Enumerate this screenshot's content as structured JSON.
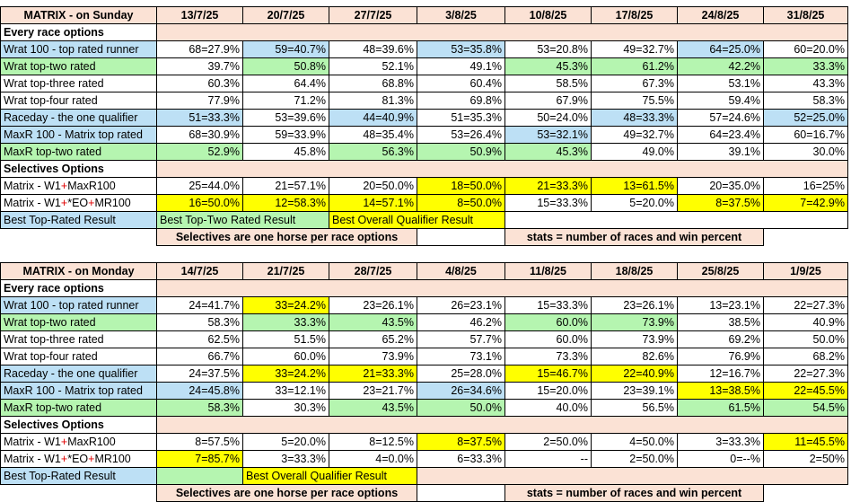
{
  "tables": [
    {
      "title": "MATRIX - on Sunday",
      "dates": [
        "13/7/25",
        "20/7/25",
        "27/7/25",
        "3/8/25",
        "10/8/25",
        "17/8/25",
        "24/8/25",
        "31/8/25"
      ],
      "sections": [
        {
          "heading": "Every race options",
          "rows": [
            {
              "label": "Wrat 100 - top rated runner",
              "lc": "b",
              "values": [
                "68=27.9%",
                "59=40.7%",
                "48=39.6%",
                "53=35.8%",
                "53=20.8%",
                "49=32.7%",
                "64=25.0%",
                "60=20.0%"
              ],
              "colors": [
                "w",
                "b",
                "w",
                "b",
                "w",
                "w",
                "b",
                "w"
              ]
            },
            {
              "label": "Wrat top-two rated",
              "lc": "g",
              "values": [
                "39.7%",
                "50.8%",
                "52.1%",
                "49.1%",
                "45.3%",
                "61.2%",
                "42.2%",
                "33.3%"
              ],
              "colors": [
                "w",
                "g",
                "w",
                "w",
                "g",
                "g",
                "g",
                "g"
              ]
            },
            {
              "label": "Wrat top-three rated",
              "lc": "w",
              "values": [
                "60.3%",
                "64.4%",
                "68.8%",
                "60.4%",
                "58.5%",
                "67.3%",
                "53.1%",
                "43.3%"
              ],
              "colors": [
                "w",
                "w",
                "w",
                "w",
                "w",
                "w",
                "w",
                "w"
              ]
            },
            {
              "label": "Wrat top-four rated",
              "lc": "w",
              "values": [
                "77.9%",
                "71.2%",
                "81.3%",
                "69.8%",
                "67.9%",
                "75.5%",
                "59.4%",
                "58.3%"
              ],
              "colors": [
                "w",
                "w",
                "w",
                "w",
                "w",
                "w",
                "w",
                "w"
              ]
            },
            {
              "label": "Raceday - the one qualifier",
              "lc": "b",
              "values": [
                "51=33.3%",
                "53=39.6%",
                "44=40.9%",
                "51=35.3%",
                "50=24.0%",
                "48=33.3%",
                "57=24.6%",
                "52=25.0%"
              ],
              "colors": [
                "b",
                "w",
                "b",
                "w",
                "w",
                "b",
                "w",
                "b"
              ]
            },
            {
              "label": "MaxR 100 - Matrix top rated",
              "lc": "b",
              "values": [
                "68=30.9%",
                "59=33.9%",
                "48=35.4%",
                "53=26.4%",
                "53=32.1%",
                "49=32.7%",
                "64=23.4%",
                "60=16.7%"
              ],
              "colors": [
                "w",
                "w",
                "w",
                "w",
                "b",
                "w",
                "w",
                "w"
              ]
            },
            {
              "label": "MaxR top-two rated",
              "lc": "g",
              "values": [
                "52.9%",
                "45.8%",
                "56.3%",
                "50.9%",
                "45.3%",
                "49.0%",
                "39.1%",
                "30.0%"
              ],
              "colors": [
                "g",
                "w",
                "g",
                "g",
                "g",
                "w",
                "w",
                "w"
              ]
            }
          ]
        },
        {
          "heading": "Selectives Options",
          "rows": [
            {
              "label": "Matrix - W1+MaxR100",
              "label_parts": [
                "Matrix - W1",
                "+",
                "MaxR100"
              ],
              "lc": "w",
              "values": [
                "25=44.0%",
                "21=57.1%",
                "20=50.0%",
                "18=50.0%",
                "21=33.3%",
                "13=61.5%",
                "20=35.0%",
                "16=25%"
              ],
              "colors": [
                "w",
                "w",
                "w",
                "y",
                "y",
                "y",
                "w",
                "w"
              ]
            },
            {
              "label": "Matrix - W1+*EO+MR100",
              "label_parts": [
                "Matrix - W1",
                "+",
                "*EO",
                "+",
                "MR100"
              ],
              "lc": "w",
              "values": [
                "16=50.0%",
                "12=58.3%",
                "14=57.1%",
                "8=50.0%",
                "15=33.3%",
                "5=20.0%",
                "8=37.5%",
                "7=42.9%"
              ],
              "colors": [
                "y",
                "y",
                "y",
                "y",
                "w",
                "w",
                "y",
                "y"
              ]
            }
          ]
        }
      ],
      "legend_best_top": "Best Top-Rated Result",
      "legend_best_two": "Best Top-Two Rated Result",
      "legend_best_overall": "Best Overall Qualifier Result",
      "note_left": "Selectives are one horse per race options",
      "note_right": "stats = number of races and win percent"
    },
    {
      "title": "MATRIX - on Monday",
      "dates": [
        "14/7/25",
        "21/7/25",
        "28/7/25",
        "4/8/25",
        "11/8/25",
        "18/8/25",
        "25/8/25",
        "1/9/25"
      ],
      "sections": [
        {
          "heading": "Every race options",
          "rows": [
            {
              "label": "Wrat 100 - top rated runner",
              "lc": "b",
              "values": [
                "24=41.7%",
                "33=24.2%",
                "23=26.1%",
                "26=23.1%",
                "15=33.3%",
                "23=26.1%",
                "13=23.1%",
                "22=27.3%"
              ],
              "colors": [
                "w",
                "y",
                "w",
                "w",
                "w",
                "w",
                "w",
                "w"
              ]
            },
            {
              "label": "Wrat top-two rated",
              "lc": "g",
              "values": [
                "58.3%",
                "33.3%",
                "43.5%",
                "46.2%",
                "60.0%",
                "73.9%",
                "38.5%",
                "40.9%"
              ],
              "colors": [
                "w",
                "g",
                "g",
                "w",
                "g",
                "g",
                "w",
                "w"
              ]
            },
            {
              "label": "Wrat top-three rated",
              "lc": "w",
              "values": [
                "62.5%",
                "51.5%",
                "65.2%",
                "57.7%",
                "60.0%",
                "73.9%",
                "69.2%",
                "50.0%"
              ],
              "colors": [
                "w",
                "w",
                "w",
                "w",
                "w",
                "w",
                "w",
                "w"
              ]
            },
            {
              "label": "Wrat top-four rated",
              "lc": "w",
              "values": [
                "66.7%",
                "60.0%",
                "73.9%",
                "73.1%",
                "73.3%",
                "82.6%",
                "76.9%",
                "68.2%"
              ],
              "colors": [
                "w",
                "w",
                "w",
                "w",
                "w",
                "w",
                "w",
                "w"
              ]
            },
            {
              "label": "Raceday - the one qualifier",
              "lc": "b",
              "values": [
                "24=37.5%",
                "33=24.2%",
                "21=33.3%",
                "25=28.0%",
                "15=46.7%",
                "22=40.9%",
                "12=16.7%",
                "22=27.3%"
              ],
              "colors": [
                "w",
                "y",
                "y",
                "w",
                "y",
                "y",
                "w",
                "w"
              ]
            },
            {
              "label": "MaxR 100 - Matrix top rated",
              "lc": "b",
              "values": [
                "24=45.8%",
                "33=12.1%",
                "23=21.7%",
                "26=34.6%",
                "15=20.0%",
                "23=39.1%",
                "13=38.5%",
                "22=45.5%"
              ],
              "colors": [
                "b",
                "w",
                "w",
                "b",
                "w",
                "w",
                "y",
                "y"
              ]
            },
            {
              "label": "MaxR top-two rated",
              "lc": "g",
              "values": [
                "58.3%",
                "30.3%",
                "43.5%",
                "50.0%",
                "40.0%",
                "56.5%",
                "61.5%",
                "54.5%"
              ],
              "colors": [
                "g",
                "w",
                "g",
                "g",
                "w",
                "w",
                "g",
                "g"
              ]
            }
          ]
        },
        {
          "heading": "Selectives Options",
          "rows": [
            {
              "label": "Matrix - W1+MaxR100",
              "label_parts": [
                "Matrix - W1",
                "+",
                "MaxR100"
              ],
              "lc": "w",
              "values": [
                "8=57.5%",
                "5=20.0%",
                "8=12.5%",
                "8=37.5%",
                "2=50.0%",
                "4=50.0%",
                "3=33.3%",
                "11=45.5%"
              ],
              "colors": [
                "w",
                "w",
                "w",
                "y",
                "w",
                "w",
                "w",
                "y"
              ]
            },
            {
              "label": "Matrix - W1+*EO+MR100",
              "label_parts": [
                "Matrix - W1",
                "+",
                "*EO",
                "+",
                "MR100"
              ],
              "lc": "w",
              "values": [
                "7=85.7%",
                "3=33.3%",
                "4=0.0%",
                "6=33.3%",
                "--",
                "2=50.0%",
                "0=--%",
                "2=50%"
              ],
              "colors": [
                "y",
                "w",
                "w",
                "w",
                "w",
                "w",
                "w",
                "w"
              ]
            }
          ]
        }
      ],
      "legend_best_top": "Best Top-Rated Result",
      "legend_best_two": "",
      "legend_best_overall": "Best Overall Qualifier Result",
      "note_left": "Selectives are one horse per race options",
      "note_right": "stats = number of races and win percent"
    }
  ]
}
